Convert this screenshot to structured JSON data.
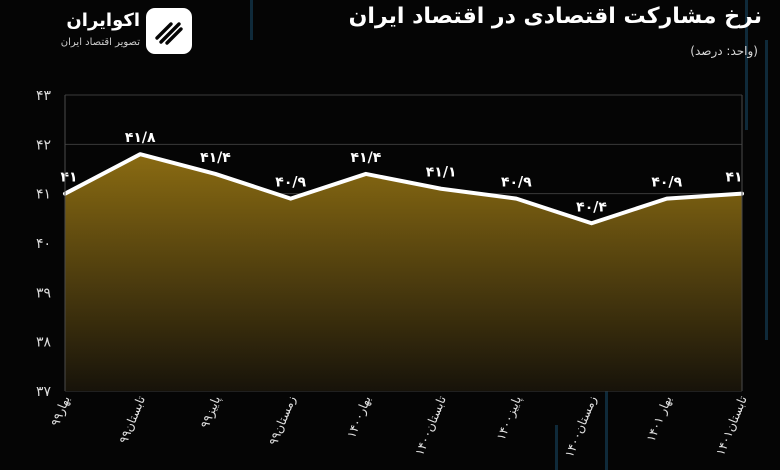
{
  "header": {
    "title": "نرخ مشارکت اقتصادی در اقتصاد ایران",
    "unit": "(واحد: درصد)"
  },
  "logo": {
    "name": "اکوایران",
    "tagline": "تصویر اقتصاد ایران",
    "icon": "ecoiran-logo-icon"
  },
  "colors": {
    "background": "#050505",
    "line": "#ffffff",
    "area_top": "#8a6b12",
    "area_bottom": "#17130a",
    "grid": "#3a3a3a"
  },
  "chart_data": {
    "type": "area",
    "categories": [
      "بهار۹۹",
      "تابستان۹۹",
      "پاییز۹۹",
      "زمستان۹۹",
      "بهار۱۴۰۰",
      "تابستان۱۴۰۰",
      "پاییز۱۴۰۰",
      "زمستان۱۴۰۰",
      "بهار ۱۴۰۱",
      "تابستان۱۴۰۱"
    ],
    "values": [
      41,
      41.8,
      41.4,
      40.9,
      41.4,
      41.1,
      40.9,
      40.4,
      40.9,
      41
    ],
    "data_labels": [
      "۴۱",
      "۴۱/۸",
      "۴۱/۴",
      "۴۰/۹",
      "۴۱/۴",
      "۴۱/۱",
      "۴۰/۹",
      "۴۰/۴",
      "۴۰/۹",
      "۴۱"
    ],
    "yticks": [
      37,
      38,
      39,
      40,
      41,
      42,
      43
    ],
    "ytick_labels": [
      "۳۷",
      "۳۸",
      "۳۹",
      "۴۰",
      "۴۱",
      "۴۲",
      "۴۳"
    ],
    "ylim": [
      37,
      43
    ],
    "grid": true,
    "title": "نرخ مشارکت اقتصادی در اقتصاد ایران",
    "ylabel": "(واحد: درصد)",
    "xlabel": ""
  }
}
